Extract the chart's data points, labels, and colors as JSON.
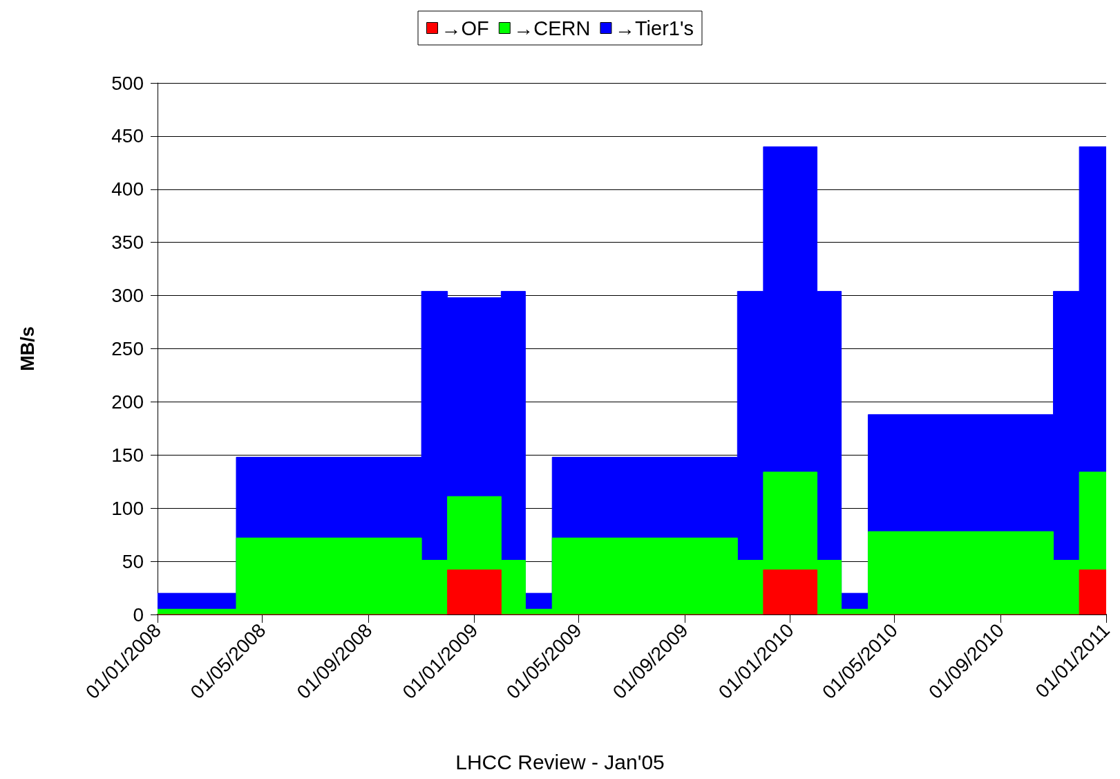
{
  "chart_data": {
    "type": "area",
    "ylabel": "MB/s",
    "annotations": [
      "LHCC Review - Jan'05"
    ],
    "x": [
      "2008-01-01",
      "2008-04-01",
      "2008-04-01",
      "2008-11-01",
      "2008-11-01",
      "2008-12-01",
      "2008-12-01",
      "2009-02-01",
      "2009-02-01",
      "2009-03-01",
      "2009-03-01",
      "2009-04-01",
      "2009-04-01",
      "2009-11-01",
      "2009-11-01",
      "2009-12-01",
      "2009-12-01",
      "2010-02-01",
      "2010-02-01",
      "2010-03-01",
      "2010-03-01",
      "2010-04-01",
      "2010-04-01",
      "2010-11-01",
      "2010-11-01",
      "2010-12-01",
      "2010-12-01",
      "2011-01-01"
    ],
    "stacked": true,
    "line_style": "solid",
    "marker": "none",
    "grid": "y",
    "legend": "top",
    "series": [
      {
        "name": "→OF",
        "color": "#ff0000",
        "values": [
          0,
          0,
          0,
          0,
          0,
          0,
          42,
          42,
          0,
          0,
          0,
          0,
          0,
          0,
          0,
          0,
          42,
          42,
          0,
          0,
          0,
          0,
          0,
          0,
          0,
          0,
          42,
          42
        ]
      },
      {
        "name": "→CERN",
        "color": "#00ff00",
        "values": [
          5,
          5,
          72,
          72,
          51,
          51,
          69,
          69,
          51,
          51,
          5,
          5,
          72,
          72,
          51,
          51,
          92,
          92,
          51,
          51,
          5,
          5,
          78,
          78,
          51,
          51,
          92,
          92
        ]
      },
      {
        "name": "→Tier1's",
        "color": "#0000ff",
        "values": [
          15,
          15,
          76,
          76,
          253,
          253,
          187,
          187,
          253,
          253,
          15,
          15,
          76,
          76,
          253,
          253,
          306,
          306,
          253,
          253,
          15,
          15,
          110,
          110,
          253,
          253,
          306,
          306
        ]
      }
    ],
    "xlim": [
      "2008-01-01",
      "2011-01-01"
    ],
    "xticks": [
      {
        "value": "2008-01-01",
        "label": "01/01/2008"
      },
      {
        "value": "2008-05-01",
        "label": "01/05/2008"
      },
      {
        "value": "2008-09-01",
        "label": "01/09/2008"
      },
      {
        "value": "2009-01-01",
        "label": "01/01/2009"
      },
      {
        "value": "2009-05-01",
        "label": "01/05/2009"
      },
      {
        "value": "2009-09-01",
        "label": "01/09/2009"
      },
      {
        "value": "2010-01-01",
        "label": "01/01/2010"
      },
      {
        "value": "2010-05-01",
        "label": "01/05/2010"
      },
      {
        "value": "2010-09-01",
        "label": "01/09/2010"
      },
      {
        "value": "2011-01-01",
        "label": "01/01/2011"
      }
    ],
    "ylim": [
      0,
      500
    ],
    "yticks": [
      0,
      50,
      100,
      150,
      200,
      250,
      300,
      350,
      400,
      450,
      500
    ]
  }
}
